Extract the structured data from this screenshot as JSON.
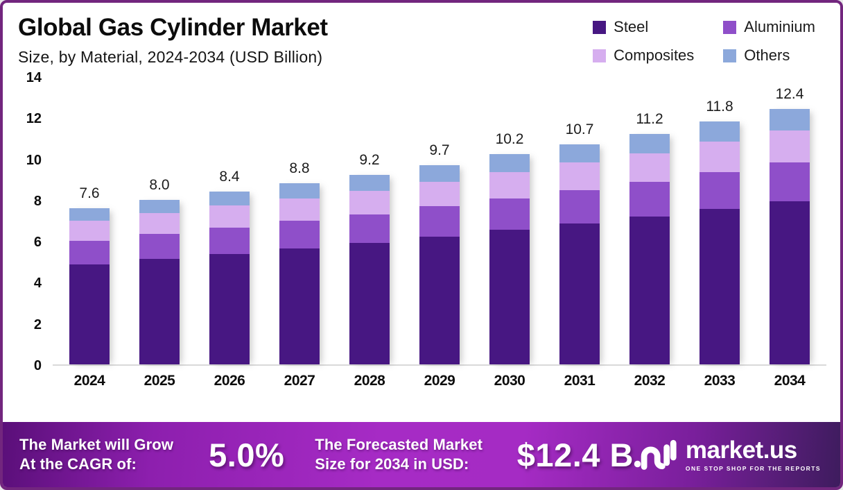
{
  "header": {
    "title": "Global Gas Cylinder Market",
    "subtitle": "Size, by Material, 2024-2034 (USD Billion)"
  },
  "legend": [
    {
      "label": "Steel",
      "color": "#471782"
    },
    {
      "label": "Aluminium",
      "color": "#8f4fc9"
    },
    {
      "label": "Composites",
      "color": "#d6aeef"
    },
    {
      "label": "Others",
      "color": "#8ca8db"
    }
  ],
  "chart_data": {
    "type": "bar",
    "stacked": true,
    "title": "Global Gas Cylinder Market Size, by Material, 2024-2034 (USD Billion)",
    "categories": [
      "2024",
      "2025",
      "2026",
      "2027",
      "2028",
      "2029",
      "2030",
      "2031",
      "2032",
      "2033",
      "2034"
    ],
    "totals": [
      7.6,
      8.0,
      8.4,
      8.8,
      9.2,
      9.7,
      10.2,
      10.7,
      11.2,
      11.8,
      12.4
    ],
    "total_labels": [
      "7.6",
      "8.0",
      "8.4",
      "8.8",
      "9.2",
      "9.7",
      "10.2",
      "10.7",
      "11.2",
      "11.8",
      "12.4"
    ],
    "series": [
      {
        "name": "Steel",
        "color": "#471782",
        "values": [
          4.86,
          5.12,
          5.38,
          5.63,
          5.89,
          6.21,
          6.53,
          6.85,
          7.17,
          7.55,
          7.94
        ]
      },
      {
        "name": "Aluminium",
        "color": "#8f4fc9",
        "values": [
          1.16,
          1.22,
          1.28,
          1.34,
          1.4,
          1.47,
          1.55,
          1.63,
          1.7,
          1.79,
          1.88
        ]
      },
      {
        "name": "Composites",
        "color": "#d6aeef",
        "values": [
          0.95,
          1.0,
          1.05,
          1.1,
          1.15,
          1.21,
          1.28,
          1.34,
          1.4,
          1.48,
          1.55
        ]
      },
      {
        "name": "Others",
        "color": "#8ca8db",
        "values": [
          0.63,
          0.66,
          0.7,
          0.73,
          0.76,
          0.81,
          0.85,
          0.89,
          0.93,
          0.98,
          1.03
        ]
      }
    ],
    "xlabel": "",
    "ylabel": "",
    "ylim": [
      0,
      14
    ],
    "yticks": [
      0,
      2,
      4,
      6,
      8,
      10,
      12,
      14
    ],
    "grid": false,
    "legend_position": "top-right"
  },
  "banner": {
    "growth": {
      "line1": "The Market will Grow",
      "line2": "At the CAGR of:",
      "value": "5.0%"
    },
    "forecast": {
      "line1": "The Forecasted Market",
      "line2": "Size for 2034 in USD:",
      "value": "$12.4 B"
    },
    "logo": {
      "name": "market.us",
      "tagline": "ONE STOP SHOP FOR THE REPORTS"
    }
  },
  "colors": {
    "border": "#72267e",
    "banner_center": "#a62bc5",
    "banner_edge": "#3e1c5e",
    "axis_line": "#d9d9d9",
    "text": "#0c0c0c"
  }
}
